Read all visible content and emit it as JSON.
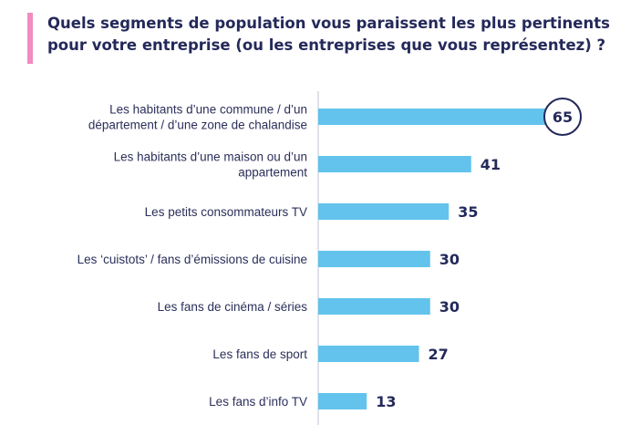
{
  "title": "Quels segments de population vous paraissent les plus pertinents pour votre entreprise (ou les entreprises que vous représentez) ?",
  "colors": {
    "bar": "#63c3ec",
    "text": "#24295a",
    "accent": "#f28bbf",
    "axis": "#d6d9e0"
  },
  "chart_data": {
    "type": "bar",
    "orientation": "horizontal",
    "title": "Quels segments de population vous paraissent les plus pertinents pour votre entreprise (ou les entreprises que vous représentez) ?",
    "categories": [
      [
        "Les habitants d’une commune / d’un",
        "département / d’une zone de chalandise"
      ],
      [
        "Les habitants d’une maison ou d’un",
        "appartement"
      ],
      [
        "Les petits consommateurs TV"
      ],
      [
        "Les ‘cuistots’ / fans d’émissions de cuisine"
      ],
      [
        "Les fans de cinéma / séries"
      ],
      [
        "Les fans de sport"
      ],
      [
        "Les fans d’info TV"
      ]
    ],
    "values": [
      65,
      41,
      35,
      30,
      30,
      27,
      13
    ],
    "xlim": [
      0,
      65
    ],
    "highlight_index": 0,
    "grid": false
  }
}
